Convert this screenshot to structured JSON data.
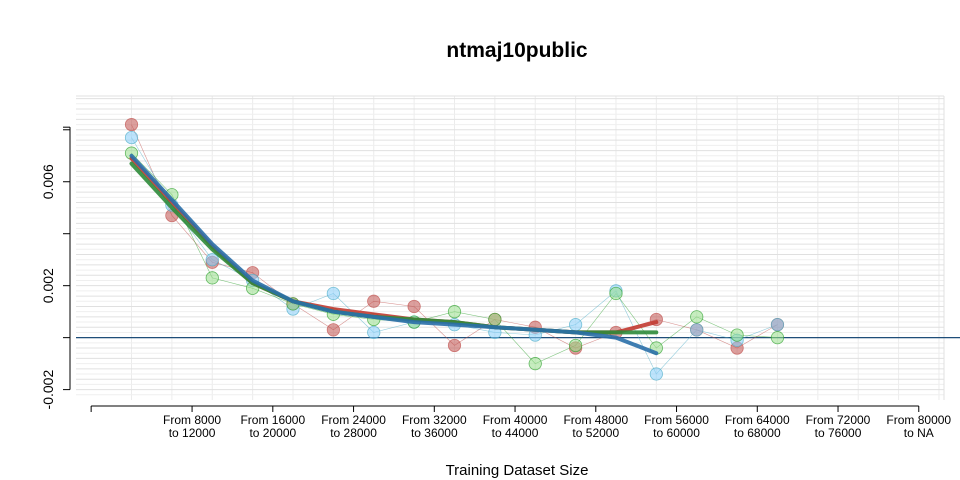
{
  "chart_data": {
    "type": "line",
    "title": "ntmaj10public",
    "xlabel": "Training Dataset Size",
    "ylabel": "",
    "ylim": [
      -0.0024,
      0.0093
    ],
    "yticks": [
      -0.002,
      0.002,
      0.006
    ],
    "ytick_labels": [
      "-0.002",
      "0.002",
      "0.006"
    ],
    "categories": [
      "From 8000\nto 12000",
      "From 16000\nto 20000",
      "From 24000\nto 28000",
      "From 32000\nto 36000",
      "From 40000\nto 44000",
      "From 48000\nto 52000",
      "From 56000\nto 60000",
      "From 64000\nto 68000",
      "From 72000\nto 76000",
      "From 80000\nto NA"
    ],
    "category_x": [
      10000,
      18000,
      26000,
      34000,
      42000,
      50000,
      58000,
      66000,
      74000,
      82000
    ],
    "xlim": [
      -1500,
      84500
    ],
    "x_axis_start": 0,
    "reference_line_y": 0,
    "grid": true,
    "series": [
      {
        "color": "#c0504d",
        "fill": "#c0504d",
        "x": [
          4000,
          8000,
          12000,
          16000,
          20000,
          24000,
          28000,
          32000,
          36000,
          40000,
          44000,
          48000,
          52000,
          56000,
          60000,
          64000,
          68000
        ],
        "values": [
          0.0082,
          0.0047,
          0.0029,
          0.0025,
          0.0013,
          0.0003,
          0.0014,
          0.0012,
          -0.0003,
          0.0007,
          0.0004,
          -0.0004,
          0.0002,
          0.0007,
          0.0003,
          -0.0004,
          0.0005
        ],
        "smooth_x": [
          4000,
          8000,
          12000,
          16000,
          20000,
          24000,
          28000,
          32000,
          36000,
          40000,
          44000,
          48000,
          52000,
          56000
        ],
        "smooth_y": [
          0.0069,
          0.0052,
          0.0035,
          0.0021,
          0.0014,
          0.0011,
          0.0009,
          0.0007,
          0.0006,
          0.0004,
          0.0003,
          0.0002,
          0.0002,
          0.0006
        ]
      },
      {
        "color": "#4bacc6",
        "fill": "#87cefa",
        "x": [
          4000,
          8000,
          12000,
          16000,
          20000,
          24000,
          28000,
          32000,
          36000,
          40000,
          44000,
          48000,
          52000,
          56000,
          60000,
          64000,
          68000
        ],
        "values": [
          0.0077,
          0.0051,
          0.003,
          0.0022,
          0.0011,
          0.0017,
          0.0002,
          0.0006,
          0.0005,
          0.0002,
          0.0001,
          0.0005,
          0.0018,
          -0.0014,
          0.0003,
          -0.0001,
          0.0005
        ],
        "smooth_x": [
          4000,
          8000,
          12000,
          16000,
          20000,
          24000,
          28000,
          32000,
          36000,
          40000,
          44000,
          48000,
          52000,
          56000
        ],
        "smooth_y": [
          0.007,
          0.0053,
          0.0036,
          0.0022,
          0.0014,
          0.001,
          0.0008,
          0.0006,
          0.0005,
          0.0004,
          0.0003,
          0.0002,
          0.0,
          -0.0006
        ]
      },
      {
        "color": "#2ca02c",
        "fill": "#98df8a",
        "x": [
          4000,
          8000,
          12000,
          16000,
          20000,
          24000,
          28000,
          32000,
          36000,
          40000,
          44000,
          48000,
          52000,
          56000,
          60000,
          64000,
          68000
        ],
        "values": [
          0.0071,
          0.0055,
          0.0023,
          0.0019,
          0.0013,
          0.0009,
          0.0007,
          0.0006,
          0.001,
          0.0007,
          -0.001,
          -0.0003,
          0.0017,
          -0.0004,
          0.0008,
          0.0001,
          0.0
        ],
        "smooth_x": [
          4000,
          8000,
          12000,
          16000,
          20000,
          24000,
          28000,
          32000,
          36000,
          40000,
          44000,
          48000,
          52000,
          56000
        ],
        "smooth_y": [
          0.0067,
          0.005,
          0.0034,
          0.0021,
          0.0014,
          0.001,
          0.0008,
          0.0007,
          0.0006,
          0.0004,
          0.0003,
          0.0002,
          0.0002,
          0.0002
        ]
      }
    ]
  }
}
